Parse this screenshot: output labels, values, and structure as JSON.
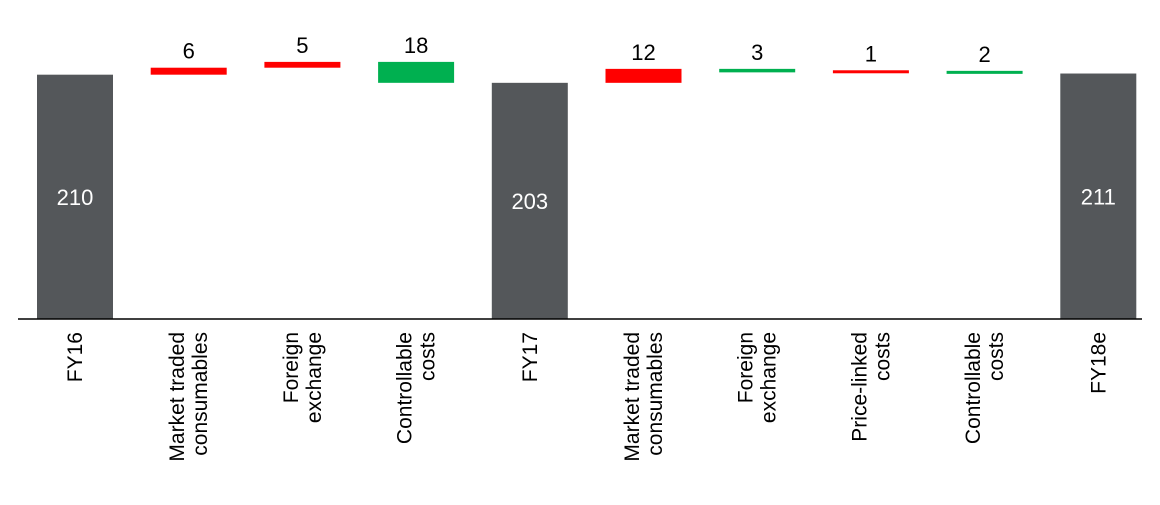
{
  "chart_data": {
    "type": "bar",
    "subtype": "waterfall",
    "title": "",
    "xlabel": "",
    "ylabel": "",
    "grid": false,
    "categories": [
      [
        "FY16"
      ],
      [
        "Market traded",
        "consumables"
      ],
      [
        "Foreign",
        "exchange"
      ],
      [
        "Controllable",
        "costs"
      ],
      [
        "FY17"
      ],
      [
        "Market traded",
        "consumables"
      ],
      [
        "Foreign",
        "exchange"
      ],
      [
        "Price-linked",
        "costs"
      ],
      [
        "Controllable",
        "costs"
      ],
      [
        "FY18e"
      ]
    ],
    "bars": [
      {
        "kind": "total",
        "value": 210,
        "label": "210"
      },
      {
        "kind": "increase",
        "value": 6,
        "label": "6"
      },
      {
        "kind": "increase",
        "value": 5,
        "label": "5"
      },
      {
        "kind": "decrease",
        "value": 18,
        "label": "18"
      },
      {
        "kind": "total",
        "value": 203,
        "label": "203"
      },
      {
        "kind": "increase",
        "value": 12,
        "label": "12"
      },
      {
        "kind": "decrease",
        "value": 3,
        "label": "3"
      },
      {
        "kind": "increase",
        "value": 1,
        "label": "1"
      },
      {
        "kind": "decrease",
        "value": 2,
        "label": "2"
      },
      {
        "kind": "total",
        "value": 211,
        "label": "211"
      }
    ],
    "colors": {
      "total": "#54575a",
      "increase": "#ff0000",
      "decrease": "#00b050",
      "axis": "#000000"
    }
  }
}
